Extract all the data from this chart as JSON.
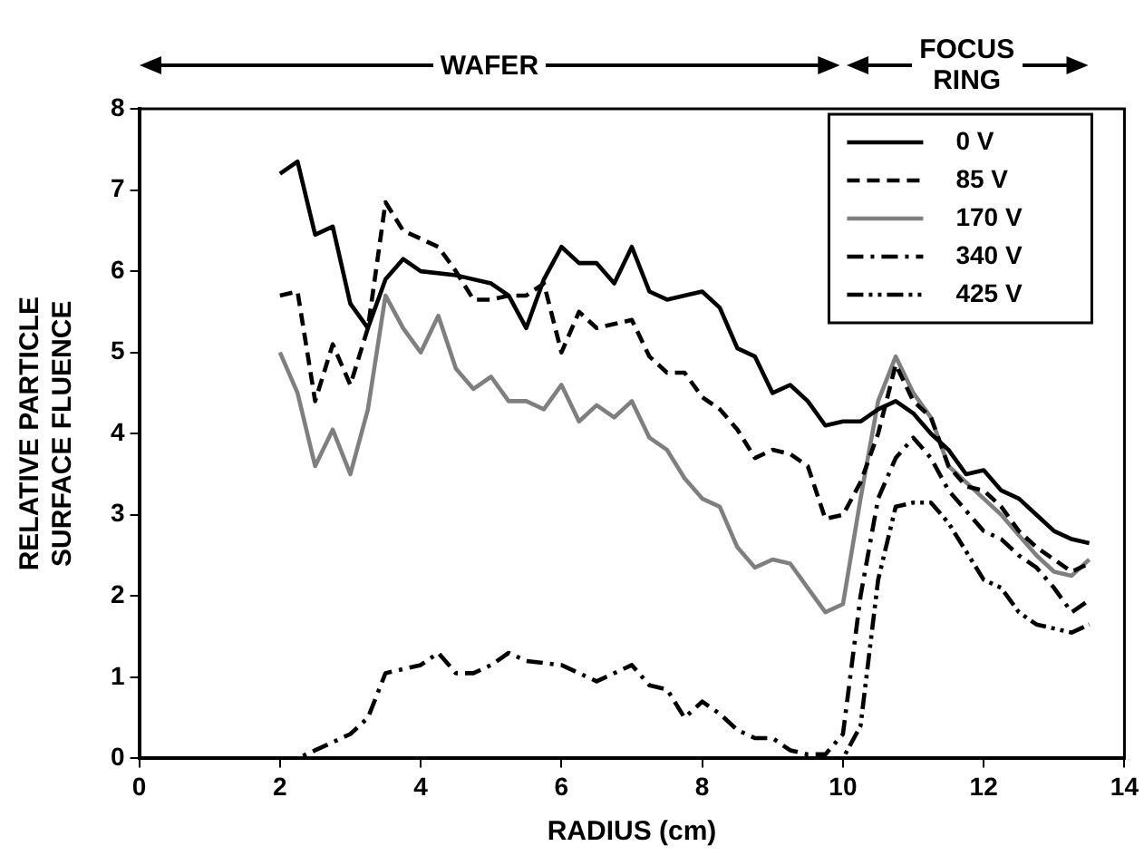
{
  "chart_data": {
    "type": "line",
    "xlabel": "RADIUS (cm)",
    "ylabel": "RELATIVE PARTICLE SURFACE FLUENCE",
    "annotations": [
      "WAFER",
      "FOCUS RING"
    ],
    "xlim": [
      0,
      14
    ],
    "xticks": [
      0,
      2,
      4,
      6,
      8,
      10,
      12,
      14
    ],
    "ylim": [
      0,
      8
    ],
    "yticks": [
      0,
      1,
      2,
      3,
      4,
      5,
      6,
      7,
      8
    ],
    "grid": false,
    "legend": "top right",
    "marker": "none",
    "series": [
      {
        "name": "0 V",
        "color": "#000000",
        "line_style": "solid",
        "x": [
          2,
          2.25,
          2.5,
          2.75,
          3,
          3.25,
          3.5,
          3.75,
          4,
          4.5,
          5,
          5.25,
          5.5,
          5.75,
          6,
          6.25,
          6.5,
          6.75,
          7,
          7.25,
          7.5,
          8,
          8.25,
          8.5,
          8.75,
          9,
          9.25,
          9.5,
          9.75,
          10,
          10.25,
          10.5,
          10.75,
          11,
          11.25,
          11.5,
          11.75,
          12,
          12.25,
          12.5,
          12.75,
          13,
          13.25,
          13.5
        ],
        "values": [
          7.2,
          7.35,
          6.45,
          6.55,
          5.6,
          5.3,
          5.9,
          6.15,
          6.0,
          5.95,
          5.85,
          5.7,
          5.3,
          5.9,
          6.3,
          6.1,
          6.1,
          5.85,
          6.3,
          5.75,
          5.65,
          5.75,
          5.55,
          5.05,
          4.95,
          4.5,
          4.6,
          4.4,
          4.1,
          4.15,
          4.15,
          4.3,
          4.4,
          4.25,
          4.0,
          3.8,
          3.5,
          3.55,
          3.3,
          3.2,
          3.0,
          2.8,
          2.7,
          2.65
        ]
      },
      {
        "name": "85 V",
        "color": "#000000",
        "line_style": "dashed",
        "x": [
          2,
          2.25,
          2.5,
          2.75,
          3,
          3.25,
          3.5,
          3.75,
          4,
          4.25,
          4.5,
          4.75,
          5,
          5.25,
          5.5,
          5.75,
          6,
          6.25,
          6.5,
          6.75,
          7,
          7.25,
          7.5,
          7.75,
          8,
          8.25,
          8.5,
          8.75,
          9,
          9.25,
          9.5,
          9.75,
          10,
          10.25,
          10.5,
          10.75,
          11,
          11.25,
          11.5,
          11.75,
          12,
          12.25,
          12.5,
          12.75,
          13,
          13.25,
          13.5
        ],
        "values": [
          5.7,
          5.75,
          4.4,
          5.1,
          4.6,
          5.3,
          6.85,
          6.5,
          6.4,
          6.3,
          6.0,
          5.65,
          5.65,
          5.7,
          5.7,
          5.85,
          5.0,
          5.5,
          5.3,
          5.35,
          5.4,
          4.95,
          4.75,
          4.75,
          4.45,
          4.3,
          4.05,
          3.7,
          3.8,
          3.75,
          3.6,
          2.95,
          3.0,
          3.4,
          4.0,
          4.85,
          4.4,
          4.2,
          3.6,
          3.35,
          3.3,
          3.1,
          2.8,
          2.6,
          2.45,
          2.3,
          2.4
        ]
      },
      {
        "name": "170 V",
        "color": "#7f7f7f",
        "line_style": "solid",
        "x": [
          2,
          2.25,
          2.5,
          2.75,
          3,
          3.25,
          3.5,
          3.75,
          4,
          4.25,
          4.5,
          4.75,
          5,
          5.25,
          5.5,
          5.75,
          6,
          6.25,
          6.5,
          6.75,
          7,
          7.25,
          7.5,
          7.75,
          8,
          8.25,
          8.5,
          8.75,
          9,
          9.25,
          9.5,
          9.75,
          10,
          10.25,
          10.5,
          10.75,
          11,
          11.25,
          11.5,
          11.75,
          12,
          12.25,
          12.5,
          12.75,
          13,
          13.25,
          13.5
        ],
        "values": [
          5.0,
          4.5,
          3.6,
          4.05,
          3.5,
          4.3,
          5.7,
          5.3,
          5.0,
          5.45,
          4.8,
          4.55,
          4.7,
          4.4,
          4.4,
          4.3,
          4.6,
          4.15,
          4.35,
          4.2,
          4.4,
          3.95,
          3.8,
          3.45,
          3.2,
          3.1,
          2.6,
          2.35,
          2.45,
          2.4,
          2.1,
          1.8,
          1.9,
          3.2,
          4.4,
          4.95,
          4.5,
          4.2,
          3.6,
          3.4,
          3.2,
          3.0,
          2.75,
          2.5,
          2.3,
          2.25,
          2.45
        ]
      },
      {
        "name": "340 V",
        "color": "#000000",
        "line_style": "dash-dot",
        "x": [
          2,
          2.25,
          2.5,
          3,
          3.25,
          3.5,
          3.75,
          4,
          4.25,
          4.5,
          4.75,
          5,
          5.25,
          5.5,
          6,
          6.5,
          7,
          7.25,
          7.5,
          7.75,
          8,
          8.25,
          8.5,
          8.75,
          9,
          9.25,
          9.5,
          9.75,
          10,
          10.25,
          10.5,
          10.75,
          11,
          11.25,
          11.5,
          11.75,
          12,
          12.25,
          12.5,
          12.75,
          13,
          13.25,
          13.5
        ],
        "values": [
          0,
          0,
          0.1,
          0.3,
          0.5,
          1.05,
          1.1,
          1.15,
          1.3,
          1.05,
          1.05,
          1.15,
          1.3,
          1.2,
          1.15,
          0.95,
          1.15,
          0.9,
          0.85,
          0.5,
          0.7,
          0.55,
          0.35,
          0.25,
          0.25,
          0.1,
          0.05,
          0.05,
          0.3,
          2.0,
          3.2,
          3.7,
          3.95,
          3.7,
          3.3,
          3.05,
          2.8,
          2.7,
          2.5,
          2.35,
          2.1,
          1.8,
          1.95
        ]
      },
      {
        "name": "425 V",
        "color": "#000000",
        "line_style": "dash-dot-dot",
        "x": [
          8.5,
          9,
          9.5,
          10,
          10.25,
          10.5,
          10.75,
          11,
          11.25,
          11.5,
          11.75,
          12,
          12.25,
          12.5,
          12.75,
          13,
          13.25,
          13.5
        ],
        "values": [
          0,
          0,
          0,
          0,
          0.4,
          2.2,
          3.1,
          3.15,
          3.15,
          2.9,
          2.55,
          2.2,
          2.1,
          1.8,
          1.65,
          1.6,
          1.55,
          1.65
        ]
      }
    ]
  }
}
